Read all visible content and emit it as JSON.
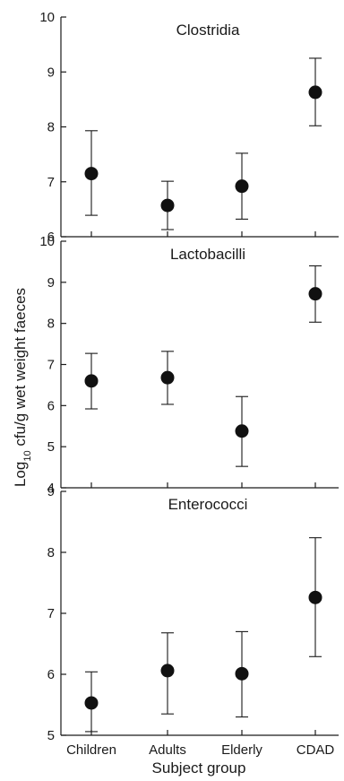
{
  "chart_data": {
    "type": "scatter",
    "xlabel": "Subject group",
    "ylabel": "Log10 cfu/g wet weight faeces",
    "ylabel_parts": {
      "pre": "Log",
      "sub": "10",
      "post": " cfu/g wet weight faeces"
    },
    "categories": [
      "Children",
      "Adults",
      "Elderly",
      "CDAD"
    ],
    "panels": [
      {
        "title": "Clostridia",
        "ylim": [
          6,
          10
        ],
        "yticks": [
          6,
          7,
          8,
          9,
          10
        ],
        "values": [
          7.15,
          6.57,
          6.92,
          8.63
        ],
        "error_low": [
          6.39,
          6.13,
          6.32,
          8.02
        ],
        "error_high": [
          7.93,
          7.01,
          7.52,
          9.25
        ]
      },
      {
        "title": "Lactobacilli",
        "ylim": [
          4,
          10
        ],
        "yticks": [
          4,
          5,
          6,
          7,
          8,
          9,
          10
        ],
        "values": [
          6.6,
          6.68,
          5.38,
          8.72
        ],
        "error_low": [
          5.92,
          6.03,
          4.52,
          8.03
        ],
        "error_high": [
          7.27,
          7.32,
          6.22,
          9.4
        ]
      },
      {
        "title": "Enterococci",
        "ylim": [
          5,
          9
        ],
        "yticks": [
          5,
          6,
          7,
          8,
          9
        ],
        "values": [
          5.53,
          6.06,
          6.01,
          7.26
        ],
        "error_low": [
          5.06,
          5.35,
          5.3,
          6.29
        ],
        "error_high": [
          6.04,
          6.68,
          6.7,
          8.24
        ]
      }
    ]
  }
}
